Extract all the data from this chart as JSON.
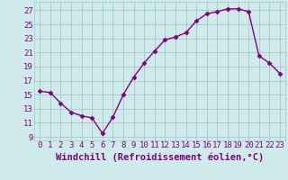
{
  "x": [
    0,
    1,
    2,
    3,
    4,
    5,
    6,
    7,
    8,
    9,
    10,
    11,
    12,
    13,
    14,
    15,
    16,
    17,
    18,
    19,
    20,
    21,
    22,
    23
  ],
  "y": [
    15.5,
    15.3,
    13.8,
    12.5,
    12.0,
    11.7,
    9.5,
    11.8,
    15.0,
    17.5,
    19.5,
    21.2,
    22.8,
    23.2,
    23.8,
    25.5,
    26.5,
    26.8,
    27.2,
    27.2,
    26.8,
    20.5,
    19.5,
    18.0
  ],
  "line_color": "#800080",
  "marker": "D",
  "markersize": 2.5,
  "linewidth": 1.0,
  "bg_color": "#ceeaea",
  "grid_color": "#a8c8c8",
  "xlabel": "Windchill (Refroidissement éolien,°C)",
  "xlabel_color": "#800080",
  "ylabel_ticks": [
    9,
    11,
    13,
    15,
    17,
    19,
    21,
    23,
    25,
    27
  ],
  "xtick_labels": [
    "0",
    "1",
    "2",
    "3",
    "4",
    "5",
    "6",
    "7",
    "8",
    "9",
    "10",
    "11",
    "12",
    "13",
    "14",
    "15",
    "16",
    "17",
    "18",
    "19",
    "20",
    "21",
    "22",
    "23"
  ],
  "ylim": [
    8.5,
    28.2
  ],
  "xlim": [
    -0.5,
    23.5
  ],
  "tick_fontsize": 6.5,
  "xlabel_fontsize": 7.5
}
